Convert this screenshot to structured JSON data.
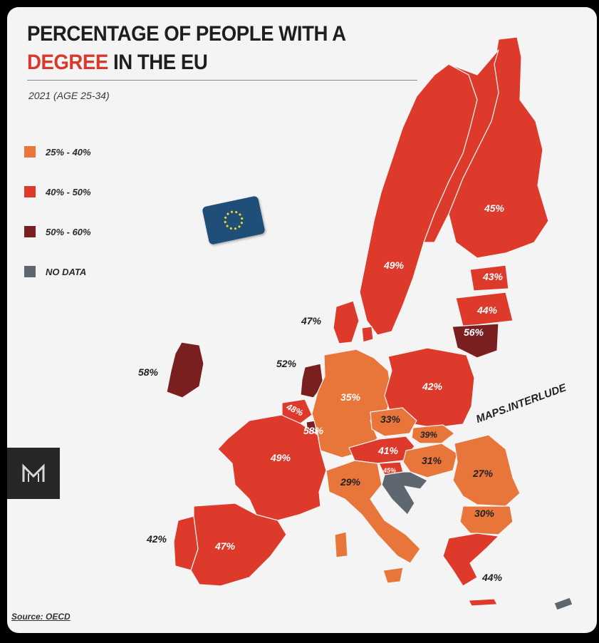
{
  "title": {
    "line1": "PERCENTAGE OF PEOPLE WITH A",
    "accent": "DEGREE",
    "rest": " IN THE EU"
  },
  "subtitle": "2021 (AGE 25-34)",
  "legend": [
    {
      "label": "25% - 40%",
      "color": "#e8753a"
    },
    {
      "label": "40% - 50%",
      "color": "#dd3a2b"
    },
    {
      "label": "50% - 60%",
      "color": "#7a1f1f"
    },
    {
      "label": "NO DATA",
      "color": "#5e6670"
    }
  ],
  "watermark": "MAPS.INTERLUDE",
  "source": "Source: OECD",
  "logo_icon": "m-logo-icon",
  "flag_icon": "eu-flag-icon",
  "countries": [
    {
      "id": "finland",
      "value": "45%"
    },
    {
      "id": "sweden",
      "value": "49%"
    },
    {
      "id": "estonia",
      "value": "43%"
    },
    {
      "id": "latvia",
      "value": "44%"
    },
    {
      "id": "lithuania",
      "value": "56%"
    },
    {
      "id": "denmark",
      "value": "47%"
    },
    {
      "id": "ireland",
      "value": "58%"
    },
    {
      "id": "netherlands",
      "value": "52%"
    },
    {
      "id": "belgium",
      "value": "48%"
    },
    {
      "id": "luxembourg",
      "value": "58%"
    },
    {
      "id": "germany",
      "value": "35%"
    },
    {
      "id": "poland",
      "value": "42%"
    },
    {
      "id": "czechia",
      "value": "33%"
    },
    {
      "id": "slovakia",
      "value": "39%"
    },
    {
      "id": "austria",
      "value": "41%"
    },
    {
      "id": "hungary",
      "value": "31%"
    },
    {
      "id": "slovenia",
      "value": "45%"
    },
    {
      "id": "romania",
      "value": "27%"
    },
    {
      "id": "bulgaria",
      "value": "30%"
    },
    {
      "id": "france",
      "value": "49%"
    },
    {
      "id": "italy",
      "value": "29%"
    },
    {
      "id": "portugal",
      "value": "42%"
    },
    {
      "id": "spain",
      "value": "47%"
    },
    {
      "id": "greece",
      "value": "44%"
    }
  ]
}
